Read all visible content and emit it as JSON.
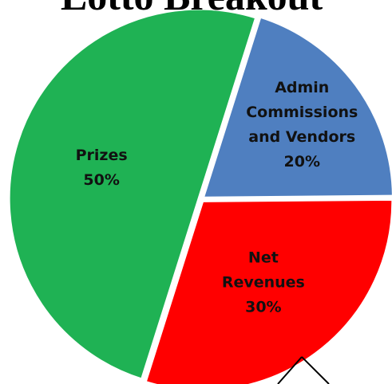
{
  "chart_data": {
    "type": "pie",
    "title": "Lotto Breakout",
    "categories": [
      "Prizes",
      "Admin Commissions and Vendors",
      "Net Revenues"
    ],
    "values": [
      50,
      20,
      30
    ],
    "value_labels": [
      "50%",
      "20%",
      "30%"
    ],
    "colors": [
      "#1fb254",
      "#4f7fc0",
      "#ff0000"
    ]
  }
}
